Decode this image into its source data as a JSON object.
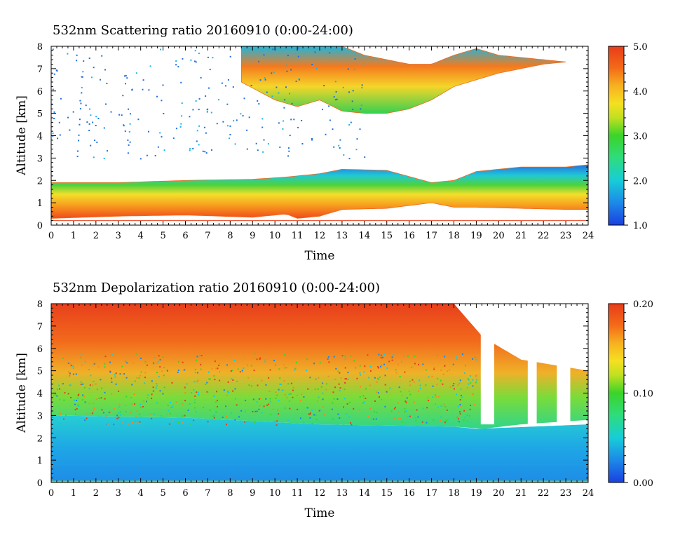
{
  "chart_data": [
    {
      "type": "heatmap",
      "title": "532nm  Scattering ratio   20160910  (0:00-24:00)",
      "xlabel": "Time",
      "ylabel": "Altitude [km]",
      "xlim": [
        0,
        24
      ],
      "ylim": [
        0,
        8
      ],
      "xticks": [
        0,
        1,
        2,
        3,
        4,
        5,
        6,
        7,
        8,
        9,
        10,
        11,
        12,
        13,
        14,
        15,
        16,
        17,
        18,
        19,
        20,
        21,
        22,
        23,
        24
      ],
      "yticks": [
        0,
        1,
        2,
        3,
        4,
        5,
        6,
        7,
        8
      ],
      "colorbar": {
        "min": 1.0,
        "max": 5.0,
        "ticks": [
          "1.0",
          "2.0",
          "3.0",
          "4.0",
          "5.0"
        ]
      },
      "layers": [
        {
          "name": "boundary_layer",
          "x": [
            0,
            3,
            6,
            9,
            10.5,
            11,
            12,
            13,
            15,
            17,
            18,
            19,
            21,
            23,
            24
          ],
          "bottom_km": [
            0.3,
            0.4,
            0.45,
            0.35,
            0.5,
            0.3,
            0.4,
            0.7,
            0.75,
            1.0,
            0.8,
            0.8,
            0.75,
            0.7,
            0.7
          ],
          "top_km": [
            1.9,
            1.9,
            2.0,
            2.05,
            2.15,
            2.2,
            2.3,
            2.5,
            2.45,
            1.9,
            2.0,
            2.4,
            2.6,
            2.6,
            2.7
          ]
        },
        {
          "name": "upper_cloud",
          "x": [
            8.5,
            10,
            11,
            12,
            13,
            14,
            15,
            16,
            17,
            18,
            19,
            20,
            21,
            22,
            23
          ],
          "bottom_km": [
            6.4,
            5.6,
            5.3,
            5.6,
            5.1,
            5.0,
            5.0,
            5.2,
            5.6,
            6.2,
            6.5,
            6.8,
            7.0,
            7.2,
            7.3
          ],
          "top_km": [
            8,
            8,
            8,
            8,
            8,
            7.6,
            7.4,
            7.2,
            7.2,
            7.6,
            7.9,
            7.6,
            7.5,
            7.4,
            7.3
          ]
        }
      ]
    },
    {
      "type": "heatmap",
      "title": "532nm  Depolarization ratio   20160910  (0:00-24:00)",
      "xlabel": "Time",
      "ylabel": "Altitude [km]",
      "xlim": [
        0,
        24
      ],
      "ylim": [
        0,
        8
      ],
      "xticks": [
        0,
        1,
        2,
        3,
        4,
        5,
        6,
        7,
        8,
        9,
        10,
        11,
        12,
        13,
        14,
        15,
        16,
        17,
        18,
        19,
        20,
        21,
        22,
        23,
        24
      ],
      "yticks": [
        0,
        1,
        2,
        3,
        4,
        5,
        6,
        7,
        8
      ],
      "colorbar": {
        "min": 0.0,
        "max": 0.2,
        "ticks": [
          "0.00",
          "0.10",
          "0.20"
        ]
      },
      "layers": [
        {
          "name": "lower_layer",
          "x": [
            0,
            6,
            12,
            18,
            19,
            24
          ],
          "bottom_km": [
            0,
            0,
            0,
            0,
            0,
            0
          ],
          "top_km": [
            3.0,
            2.9,
            2.6,
            2.5,
            2.4,
            2.6
          ]
        },
        {
          "name": "upper_layer",
          "x": [
            0,
            6,
            12,
            18,
            19.3,
            21,
            24
          ],
          "bottom_km": [
            3.0,
            2.9,
            2.6,
            2.5,
            2.4,
            2.6,
            2.8
          ],
          "top_km": [
            8,
            8,
            8,
            8,
            6.5,
            5.5,
            5.0
          ]
        }
      ]
    }
  ]
}
